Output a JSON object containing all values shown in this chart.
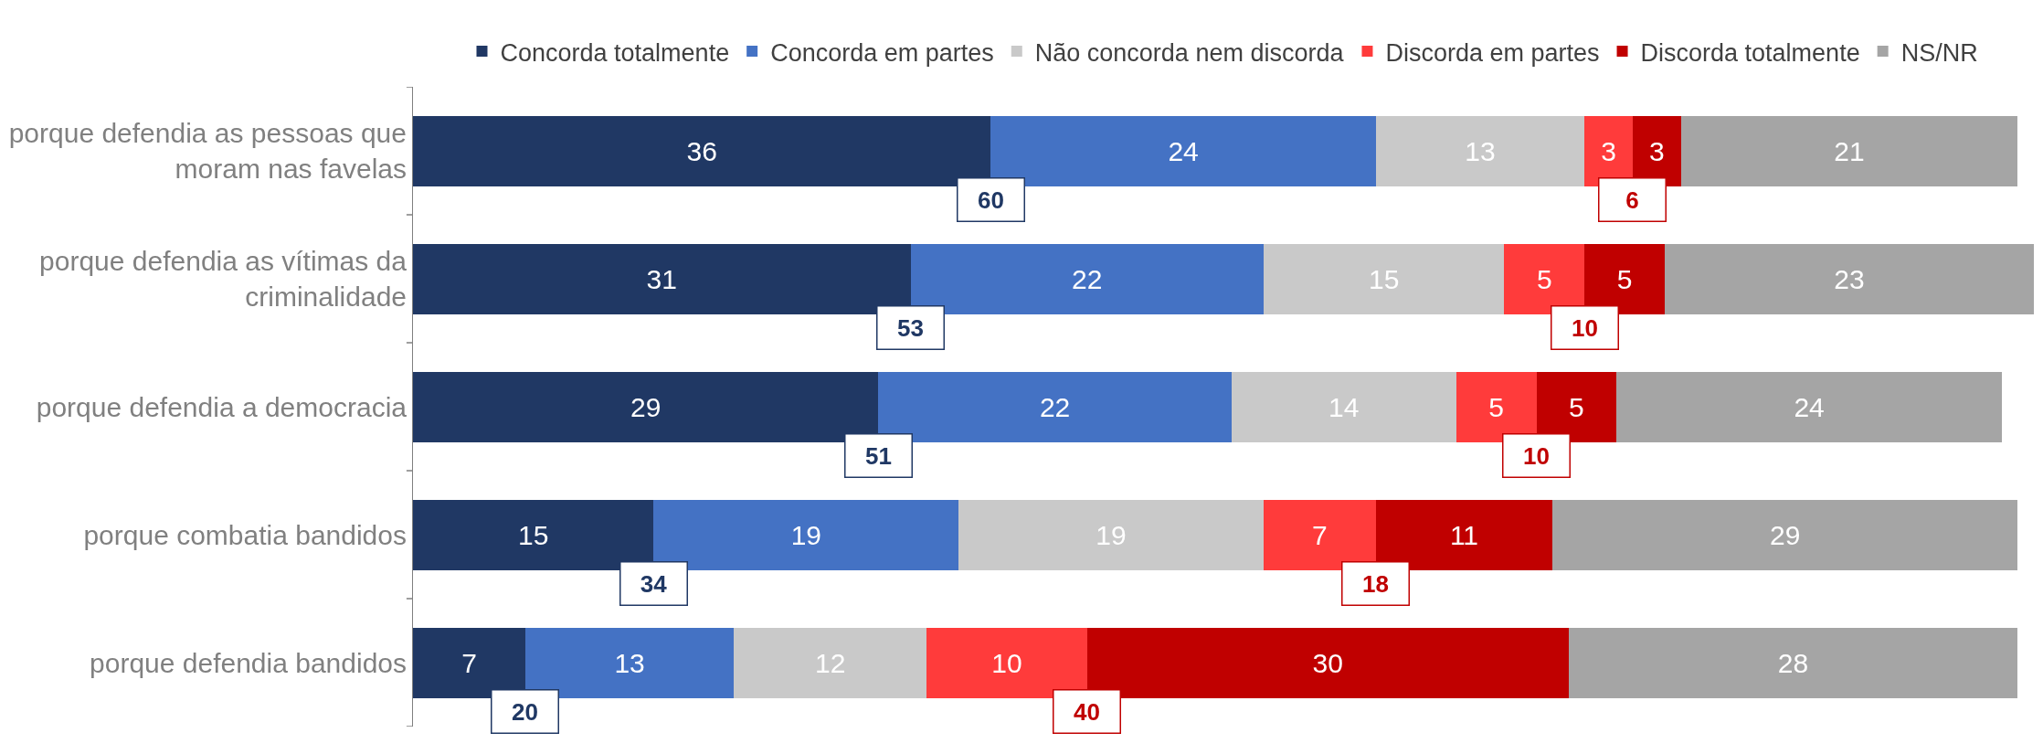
{
  "chart_data": {
    "type": "bar",
    "orientation": "horizontal",
    "stacked": true,
    "data_labels": true,
    "legend": "top",
    "categories": [
      "porque defendia as pessoas que moram nas favelas",
      "porque defendia as vítimas da criminalidade",
      "porque defendia a democracia",
      "porque combatia bandidos",
      "porque defendia bandidos"
    ],
    "series": [
      {
        "name": "Concorda totalmente",
        "color": "#203864",
        "values": [
          36,
          31,
          29,
          15,
          7
        ]
      },
      {
        "name": "Concorda em partes",
        "color": "#4472c4",
        "values": [
          24,
          22,
          22,
          19,
          13
        ]
      },
      {
        "name": "Não concorda nem discorda",
        "color": "#c9c9c9",
        "values": [
          13,
          15,
          14,
          19,
          12
        ]
      },
      {
        "name": "Discorda em partes",
        "color": "#ff3b3b",
        "values": [
          3,
          5,
          5,
          7,
          10
        ]
      },
      {
        "name": "Discorda totalmente",
        "color": "#c00000",
        "values": [
          3,
          5,
          5,
          11,
          30
        ]
      },
      {
        "name": "NS/NR",
        "color": "#a5a5a5",
        "values": [
          21,
          23,
          24,
          29,
          28
        ]
      }
    ],
    "annotations": [
      {
        "text": "60",
        "x": 36,
        "y": "porque defendia as pessoas que moram nas favelas"
      },
      {
        "text": "6",
        "x": 76,
        "y": "porque defendia as pessoas que moram nas favelas"
      },
      {
        "text": "53",
        "x": 31,
        "y": "porque defendia as vítimas da criminalidade"
      },
      {
        "text": "10",
        "x": 73,
        "y": "porque defendia as vítimas da criminalidade"
      },
      {
        "text": "51",
        "x": 29,
        "y": "porque defendia a democracia"
      },
      {
        "text": "10",
        "x": 70,
        "y": "porque defendia a democracia"
      },
      {
        "text": "34",
        "x": 15,
        "y": "porque combatia bandidos"
      },
      {
        "text": "18",
        "x": 60,
        "y": "porque combatia bandidos"
      },
      {
        "text": "20",
        "x": 7,
        "y": "porque defendia bandidos"
      },
      {
        "text": "40",
        "x": 42,
        "y": "porque defendia bandidos"
      }
    ]
  }
}
